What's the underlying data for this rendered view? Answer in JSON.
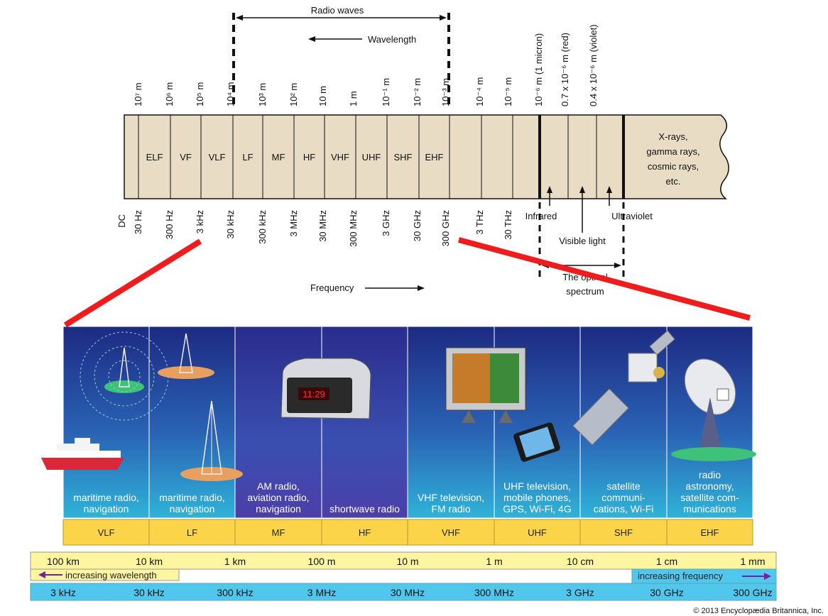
{
  "top_diagram": {
    "radio_waves_label": "Radio waves",
    "wavelength_label": "Wavelength",
    "frequency_label": "Frequency",
    "dc_label": "DC",
    "wavelength_ticks": [
      "10⁷ m",
      "10⁶ m",
      "10⁵ m",
      "10⁴ m",
      "10³ m",
      "10² m",
      "10 m",
      "1 m",
      "10⁻¹ m",
      "10⁻² m",
      "10⁻³ m",
      "10⁻⁴ m",
      "10⁻⁵ m",
      "10⁻⁶ m (1 micron)",
      "0.7 x 10⁻⁶ m (red)",
      "0.4 x 10⁻⁶ m (violet)"
    ],
    "frequency_ticks": [
      "30 Hz",
      "300 Hz",
      "3 kHz",
      "30 kHz",
      "300 kHz",
      "3 MHz",
      "30 MHz",
      "300 MHz",
      "3 GHz",
      "30 GHz",
      "300 GHz",
      "3 THz",
      "30 THz"
    ],
    "bands": [
      "ELF",
      "VF",
      "VLF",
      "LF",
      "MF",
      "HF",
      "VHF",
      "UHF",
      "SHF",
      "EHF"
    ],
    "xrays_label": [
      "X-rays,",
      "gamma rays,",
      "cosmic rays,",
      "etc."
    ],
    "infrared_label": "Infrared",
    "visible_label": "Visible light",
    "ultraviolet_label": "Ultraviolet",
    "optical_label": [
      "The optical",
      "spectrum"
    ]
  },
  "bottom_diagram": {
    "panels": [
      {
        "caption": [
          "maritime radio,",
          "navigation"
        ],
        "band": "VLF"
      },
      {
        "caption": [
          "maritime radio,",
          "navigation"
        ],
        "band": "LF"
      },
      {
        "caption": [
          "AM radio,",
          "aviation radio,",
          "navigation"
        ],
        "band": "MF"
      },
      {
        "caption": [
          "shortwave radio"
        ],
        "band": "HF"
      },
      {
        "caption": [
          "VHF television,",
          "FM radio"
        ],
        "band": "VHF"
      },
      {
        "caption": [
          "UHF television,",
          "mobile phones,",
          "GPS, Wi-Fi, 4G"
        ],
        "band": "UHF"
      },
      {
        "caption": [
          "satellite",
          "communi-",
          "cations, Wi-Fi"
        ],
        "band": "SHF"
      },
      {
        "caption": [
          "radio",
          "astronomy,",
          "satellite com-",
          "munications"
        ],
        "band": "EHF"
      }
    ],
    "clock_display": "11:29",
    "wavelength_scale": [
      "100 km",
      "10 km",
      "1 km",
      "100 m",
      "10 m",
      "1 m",
      "10 cm",
      "1 cm",
      "1 mm"
    ],
    "frequency_scale": [
      "3 kHz",
      "30 kHz",
      "300 kHz",
      "3 MHz",
      "30 MHz",
      "300 MHz",
      "3 GHz",
      "30 GHz",
      "300 GHz"
    ],
    "increasing_wavelength_label": "increasing wavelength",
    "increasing_frequency_label": "increasing frequency",
    "copyright": "© 2013 Encyclopædia Britannica, Inc."
  },
  "colors": {
    "bar_fill": "#e8dcc4",
    "connector_red": "#ee1c1c",
    "panel_top": "#1d2a82",
    "panel_bottom": "#2fb3d8",
    "band_yellow": "#fbd44a",
    "scale_yellow": "#fdf5a0",
    "scale_blue": "#52c7ee",
    "arrow_purple": "#7a1f9a"
  }
}
